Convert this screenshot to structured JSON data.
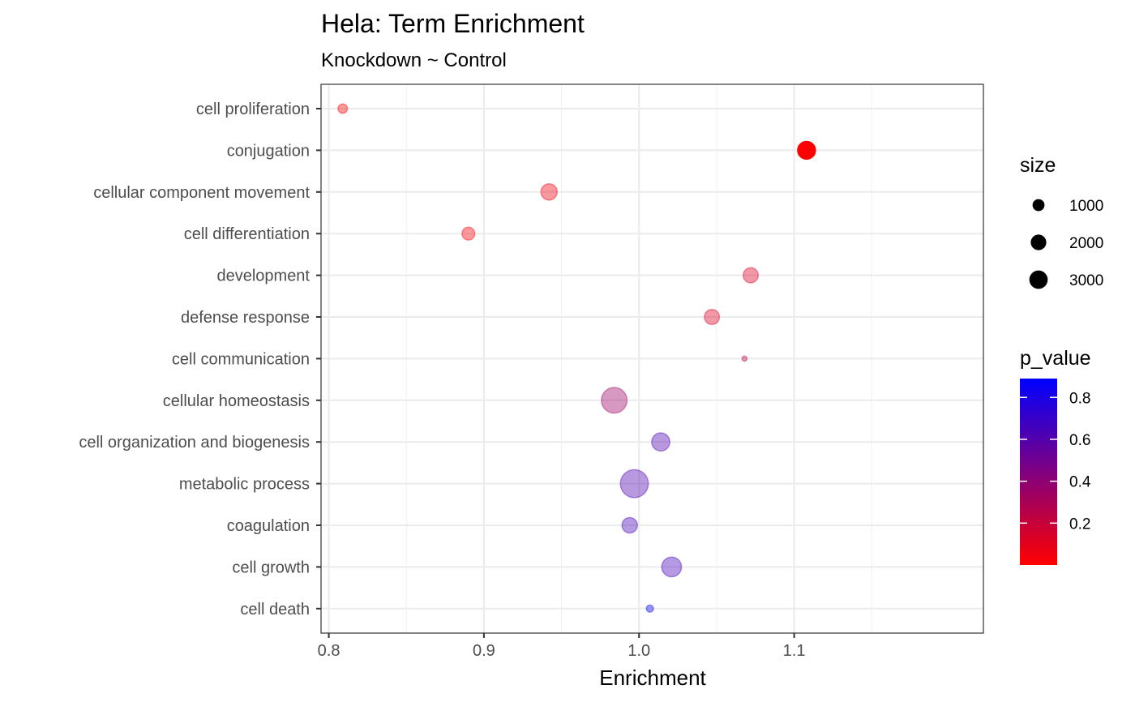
{
  "chart_data": {
    "type": "scatter",
    "title": "Hela: Term Enrichment",
    "subtitle": "Knockdown ~ Control",
    "xlabel": "Enrichment",
    "ylabel": "",
    "xlim": [
      0.795,
      1.222
    ],
    "xticks": [
      0.8,
      0.9,
      1.0,
      1.1
    ],
    "xtick_labels": [
      "0.8",
      "0.9",
      "1.0",
      "1.1"
    ],
    "grid": true,
    "categories": [
      "cell proliferation",
      "conjugation",
      "cellular component movement",
      "cell differentiation",
      "development",
      "defense response",
      "cell communication",
      "cellular homeostasis",
      "cell organization and biogenesis",
      "metabolic process",
      "coagulation",
      "cell growth",
      "cell death"
    ],
    "points": [
      {
        "term": "cell proliferation",
        "enrichment": 0.809,
        "size": 350,
        "p_value": 0.02
      },
      {
        "term": "conjugation",
        "enrichment": 1.108,
        "size": 1250,
        "p_value": 0.0
      },
      {
        "term": "cellular component movement",
        "enrichment": 0.942,
        "size": 1050,
        "p_value": 0.05
      },
      {
        "term": "cell differentiation",
        "enrichment": 0.89,
        "size": 650,
        "p_value": 0.04
      },
      {
        "term": "development",
        "enrichment": 1.072,
        "size": 900,
        "p_value": 0.12
      },
      {
        "term": "defense response",
        "enrichment": 1.047,
        "size": 900,
        "p_value": 0.12
      },
      {
        "term": "cell communication",
        "enrichment": 1.068,
        "size": 100,
        "p_value": 0.25
      },
      {
        "term": "cellular homeostasis",
        "enrichment": 0.984,
        "size": 2600,
        "p_value": 0.35
      },
      {
        "term": "cell organization and biogenesis",
        "enrichment": 1.014,
        "size": 1300,
        "p_value": 0.62
      },
      {
        "term": "metabolic process",
        "enrichment": 0.997,
        "size": 3100,
        "p_value": 0.62
      },
      {
        "term": "coagulation",
        "enrichment": 0.994,
        "size": 950,
        "p_value": 0.65
      },
      {
        "term": "cell growth",
        "enrichment": 1.021,
        "size": 1550,
        "p_value": 0.65
      },
      {
        "term": "cell death",
        "enrichment": 1.007,
        "size": 200,
        "p_value": 0.88
      }
    ],
    "legend_size": {
      "title": "size",
      "values": [
        1000,
        2000,
        3000
      ],
      "labels": [
        "1000",
        "2000",
        "3000"
      ]
    },
    "legend_color": {
      "title": "p_value",
      "range": [
        0.0,
        0.89
      ],
      "ticks": [
        0.2,
        0.4,
        0.6,
        0.8
      ],
      "tick_labels": [
        "0.2",
        "0.4",
        "0.6",
        "0.8"
      ],
      "low_color": "#ff0000",
      "high_color": "#0000ff"
    },
    "legend_placement": "right"
  }
}
